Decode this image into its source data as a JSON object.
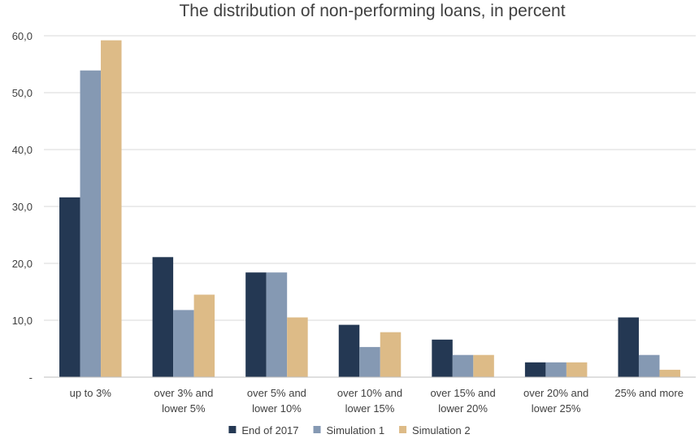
{
  "chart_data": {
    "type": "bar",
    "title": "The distribution of non-performing loans, in percent",
    "xlabel": "",
    "ylabel": "",
    "categories": [
      [
        "up to 3%"
      ],
      [
        "over 3% and",
        "lower 5%"
      ],
      [
        "over 5% and",
        "lower 10%"
      ],
      [
        "over 10% and",
        "lower 15%"
      ],
      [
        "over 15% and",
        "lower 20%"
      ],
      [
        "over 20% and",
        "lower 25%"
      ],
      [
        "25% and more"
      ]
    ],
    "series": [
      {
        "name": "End of 2017",
        "color": "#243853",
        "values": [
          31.6,
          21.1,
          18.4,
          9.2,
          6.6,
          2.6,
          10.5
        ]
      },
      {
        "name": "Simulation 1",
        "color": "#8599b3",
        "values": [
          53.9,
          11.8,
          18.4,
          5.3,
          3.9,
          2.6,
          3.9
        ]
      },
      {
        "name": "Simulation 2",
        "color": "#ddbb87",
        "values": [
          59.2,
          14.5,
          10.5,
          7.9,
          3.9,
          2.6,
          1.3
        ]
      }
    ],
    "ylim": [
      0,
      60
    ],
    "yticks": [
      {
        "value": 0,
        "label": "-"
      },
      {
        "value": 10,
        "label": "10,0"
      },
      {
        "value": 20,
        "label": "20,0"
      },
      {
        "value": 30,
        "label": "30,0"
      },
      {
        "value": 40,
        "label": "40,0"
      },
      {
        "value": 50,
        "label": "50,0"
      },
      {
        "value": 60,
        "label": "60,0"
      }
    ],
    "grid": true,
    "legend": "bottom"
  }
}
